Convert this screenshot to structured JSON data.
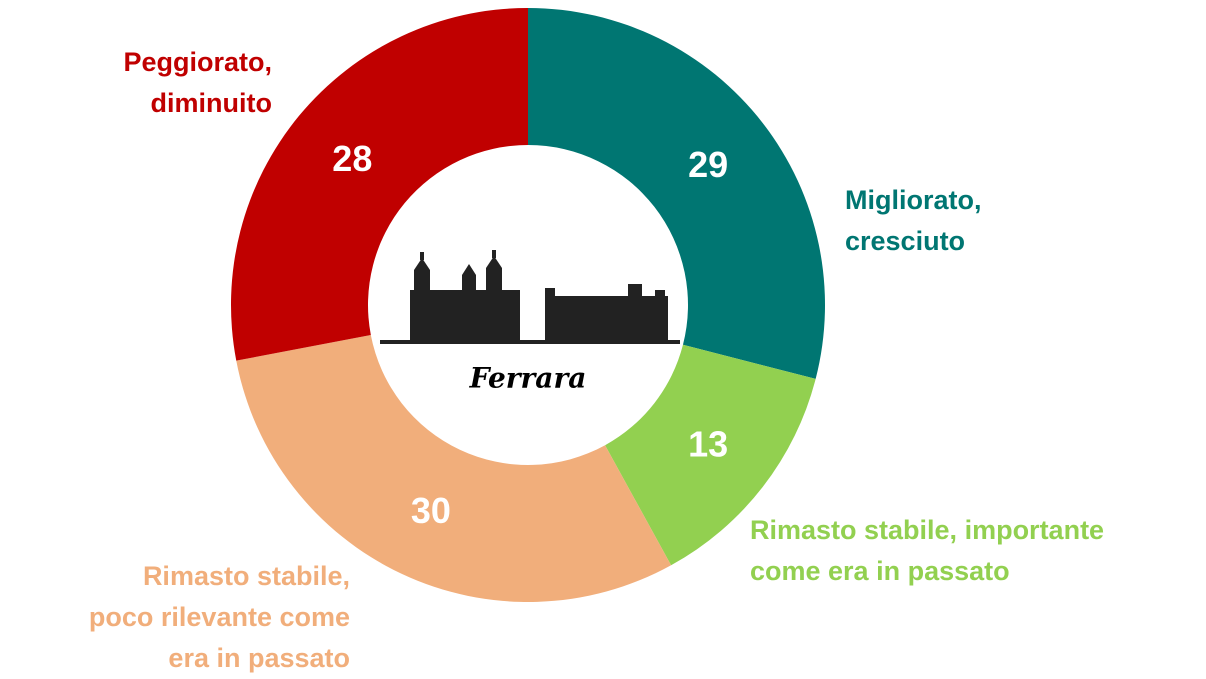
{
  "chart_data": {
    "type": "donut",
    "categories": [
      "Migliorato,\ncresciuto",
      "Rimasto stabile, importante\ncome era in passato",
      "Rimasto stabile,\npoco rilevante come\nera in passato",
      "Peggiorato,\ndiminuito"
    ],
    "values": [
      29,
      13,
      30,
      28
    ],
    "colors": [
      "#007672",
      "#92d050",
      "#f1ae7b",
      "#c00000"
    ],
    "center_label": "Ferrara"
  }
}
